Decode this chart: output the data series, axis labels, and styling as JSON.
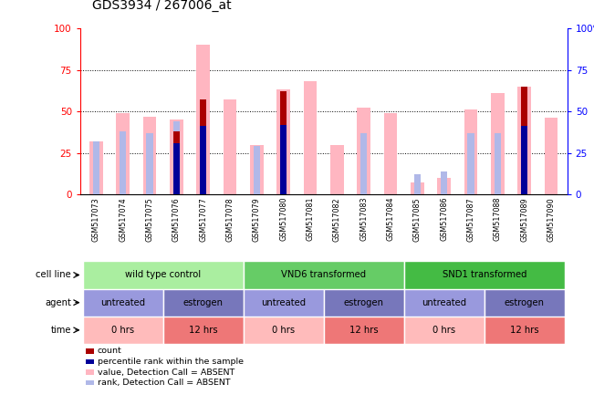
{
  "title": "GDS3934 / 267006_at",
  "samples": [
    "GSM517073",
    "GSM517074",
    "GSM517075",
    "GSM517076",
    "GSM517077",
    "GSM517078",
    "GSM517079",
    "GSM517080",
    "GSM517081",
    "GSM517082",
    "GSM517083",
    "GSM517084",
    "GSM517085",
    "GSM517086",
    "GSM517087",
    "GSM517088",
    "GSM517089",
    "GSM517090"
  ],
  "value_absent": [
    32,
    49,
    47,
    45,
    90,
    57,
    30,
    63,
    68,
    30,
    52,
    49,
    7,
    10,
    51,
    61,
    65,
    46
  ],
  "rank_absent": [
    32,
    38,
    37,
    44,
    0,
    0,
    29,
    42,
    0,
    0,
    37,
    0,
    12,
    14,
    37,
    37,
    34,
    0
  ],
  "count_red": [
    0,
    0,
    0,
    38,
    57,
    0,
    0,
    62,
    0,
    0,
    0,
    0,
    0,
    0,
    0,
    0,
    65,
    0
  ],
  "rank_blue": [
    0,
    0,
    0,
    31,
    41,
    0,
    0,
    42,
    0,
    0,
    0,
    0,
    0,
    0,
    0,
    0,
    41,
    0
  ],
  "cell_line_groups": [
    {
      "label": "wild type control",
      "start": 0,
      "end": 6,
      "color": "#AAEEA0"
    },
    {
      "label": "VND6 transformed",
      "start": 6,
      "end": 12,
      "color": "#66CC66"
    },
    {
      "label": "SND1 transformed",
      "start": 12,
      "end": 18,
      "color": "#44BB44"
    }
  ],
  "agent_groups": [
    {
      "label": "untreated",
      "start": 0,
      "end": 3,
      "color": "#9999DD"
    },
    {
      "label": "estrogen",
      "start": 3,
      "end": 6,
      "color": "#7777BB"
    },
    {
      "label": "untreated",
      "start": 6,
      "end": 9,
      "color": "#9999DD"
    },
    {
      "label": "estrogen",
      "start": 9,
      "end": 12,
      "color": "#7777BB"
    },
    {
      "label": "untreated",
      "start": 12,
      "end": 15,
      "color": "#9999DD"
    },
    {
      "label": "estrogen",
      "start": 15,
      "end": 18,
      "color": "#7777BB"
    }
  ],
  "time_groups": [
    {
      "label": "0 hrs",
      "start": 0,
      "end": 3,
      "color": "#FFBBBB"
    },
    {
      "label": "12 hrs",
      "start": 3,
      "end": 6,
      "color": "#EE7777"
    },
    {
      "label": "0 hrs",
      "start": 6,
      "end": 9,
      "color": "#FFBBBB"
    },
    {
      "label": "12 hrs",
      "start": 9,
      "end": 12,
      "color": "#EE7777"
    },
    {
      "label": "0 hrs",
      "start": 12,
      "end": 15,
      "color": "#FFBBBB"
    },
    {
      "label": "12 hrs",
      "start": 15,
      "end": 18,
      "color": "#EE7777"
    }
  ],
  "color_value_absent": "#FFB6C1",
  "color_rank_absent": "#B0B8E8",
  "color_count_red": "#AA0000",
  "color_rank_blue": "#000099",
  "yticks": [
    0,
    25,
    50,
    75,
    100
  ],
  "title_fontsize": 10,
  "xtick_bg": "#DDDDDD",
  "legend_items": [
    {
      "color": "#AA0000",
      "label": "count"
    },
    {
      "color": "#000099",
      "label": "percentile rank within the sample"
    },
    {
      "color": "#FFB6C1",
      "label": "value, Detection Call = ABSENT"
    },
    {
      "color": "#B0B8E8",
      "label": "rank, Detection Call = ABSENT"
    }
  ]
}
